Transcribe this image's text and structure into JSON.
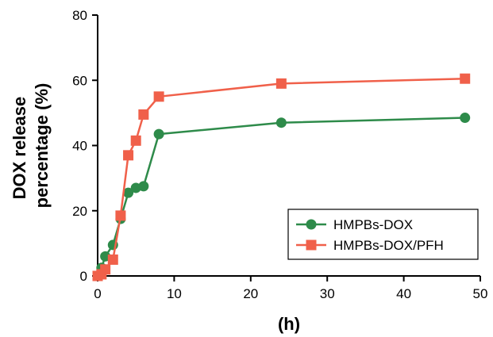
{
  "chart_data": {
    "type": "line",
    "title": "",
    "xlabel": "(h)",
    "ylabel_lines": [
      "DOX release",
      "percentage (%)"
    ],
    "xlim": [
      0,
      50
    ],
    "ylim": [
      0,
      80
    ],
    "xticks": [
      0,
      10,
      20,
      30,
      40,
      50
    ],
    "yticks": [
      0,
      20,
      40,
      60,
      80
    ],
    "grid": false,
    "legend_position": "bottom-right",
    "series": [
      {
        "name": "HMPBs-DOX",
        "color": "#2e8b4a",
        "marker": "circle",
        "x": [
          0,
          0.5,
          1,
          2,
          3,
          4,
          5,
          6,
          8,
          24,
          48
        ],
        "y": [
          0,
          2.5,
          6,
          9.5,
          17.5,
          25.5,
          27,
          27.5,
          43.5,
          47,
          48.5
        ]
      },
      {
        "name": "HMPBs-DOX/PFH",
        "color": "#f0604a",
        "marker": "square",
        "x": [
          0,
          0.5,
          1,
          2,
          3,
          4,
          5,
          6,
          8,
          24,
          48
        ],
        "y": [
          0,
          0.5,
          2,
          5,
          18.5,
          37,
          41.5,
          49.5,
          55,
          59,
          60.5
        ]
      }
    ]
  }
}
